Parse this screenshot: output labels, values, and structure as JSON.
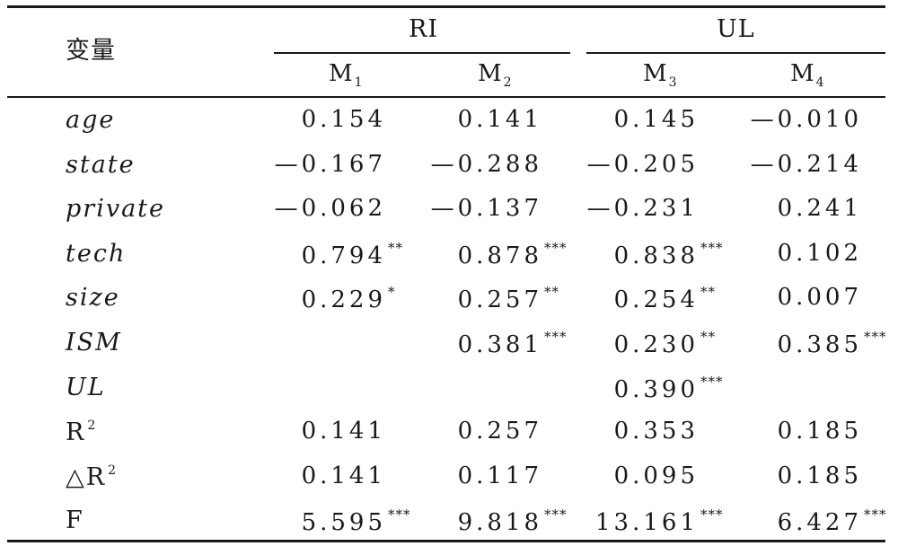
{
  "table": {
    "variable_header": "变量",
    "groups": [
      {
        "label": "RI"
      },
      {
        "label": "UL"
      }
    ],
    "models": [
      {
        "base": "M",
        "sub": "1"
      },
      {
        "base": "M",
        "sub": "2"
      },
      {
        "base": "M",
        "sub": "3"
      },
      {
        "base": "M",
        "sub": "4"
      }
    ],
    "rows": [
      {
        "label": "age",
        "italic": true,
        "cells": [
          {
            "value": "0.154",
            "stars": ""
          },
          {
            "value": "0.141",
            "stars": ""
          },
          {
            "value": "0.145",
            "stars": ""
          },
          {
            "value": "—0.010",
            "stars": ""
          }
        ]
      },
      {
        "label": "state",
        "italic": true,
        "cells": [
          {
            "value": "—0.167",
            "stars": ""
          },
          {
            "value": "—0.288",
            "stars": ""
          },
          {
            "value": "—0.205",
            "stars": ""
          },
          {
            "value": "—0.214",
            "stars": ""
          }
        ]
      },
      {
        "label": "private",
        "italic": true,
        "cells": [
          {
            "value": "—0.062",
            "stars": ""
          },
          {
            "value": "—0.137",
            "stars": ""
          },
          {
            "value": "—0.231",
            "stars": ""
          },
          {
            "value": "0.241",
            "stars": ""
          }
        ]
      },
      {
        "label": "tech",
        "italic": true,
        "cells": [
          {
            "value": "0.794",
            "stars": "**"
          },
          {
            "value": "0.878",
            "stars": "***"
          },
          {
            "value": "0.838",
            "stars": "***"
          },
          {
            "value": "0.102",
            "stars": ""
          }
        ]
      },
      {
        "label": "size",
        "italic": true,
        "cells": [
          {
            "value": "0.229",
            "stars": "*"
          },
          {
            "value": "0.257",
            "stars": "**"
          },
          {
            "value": "0.254",
            "stars": "**"
          },
          {
            "value": "0.007",
            "stars": ""
          }
        ]
      },
      {
        "label": "ISM",
        "italic": true,
        "cells": [
          {
            "value": "",
            "stars": ""
          },
          {
            "value": "0.381",
            "stars": "***"
          },
          {
            "value": "0.230",
            "stars": "**"
          },
          {
            "value": "0.385",
            "stars": "***"
          }
        ]
      },
      {
        "label": "UL",
        "italic": true,
        "cells": [
          {
            "value": "",
            "stars": ""
          },
          {
            "value": "",
            "stars": ""
          },
          {
            "value": "0.390",
            "stars": "***"
          },
          {
            "value": "",
            "stars": ""
          }
        ]
      },
      {
        "label": "R",
        "label_sup": "2",
        "italic": false,
        "cells": [
          {
            "value": "0.141",
            "stars": ""
          },
          {
            "value": "0.257",
            "stars": ""
          },
          {
            "value": "0.353",
            "stars": ""
          },
          {
            "value": "0.185",
            "stars": ""
          }
        ]
      },
      {
        "label": "△R",
        "label_sup": "2",
        "italic": false,
        "cells": [
          {
            "value": "0.141",
            "stars": ""
          },
          {
            "value": "0.117",
            "stars": ""
          },
          {
            "value": "0.095",
            "stars": ""
          },
          {
            "value": "0.185",
            "stars": ""
          }
        ]
      },
      {
        "label": "F",
        "italic": false,
        "cells": [
          {
            "value": "5.595",
            "stars": "***"
          },
          {
            "value": "9.818",
            "stars": "***"
          },
          {
            "value": "13.161",
            "stars": "***"
          },
          {
            "value": "6.427",
            "stars": "***"
          }
        ]
      }
    ]
  }
}
